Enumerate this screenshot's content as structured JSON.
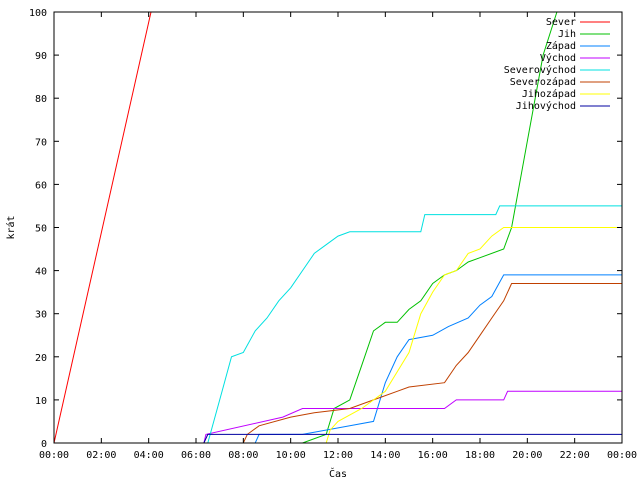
{
  "chart_data": {
    "type": "line",
    "title": "",
    "xlabel": "Čas",
    "ylabel": "krát",
    "xlim": [
      "00:00",
      "24:00"
    ],
    "ylim": [
      0,
      100
    ],
    "x_tick_labels": [
      "00:00",
      "02:00",
      "04:00",
      "06:00",
      "08:00",
      "10:00",
      "12:00",
      "14:00",
      "16:00",
      "18:00",
      "20:00",
      "22:00",
      "00:00"
    ],
    "y_tick_labels": [
      "0",
      "10",
      "20",
      "30",
      "40",
      "50",
      "60",
      "70",
      "80",
      "90",
      "100"
    ],
    "legend_position": "top-right",
    "grid": false,
    "series": [
      {
        "name": "Sever",
        "color": "#ff0000",
        "points": [
          [
            "00:00",
            0
          ],
          [
            "04:06",
            100
          ]
        ]
      },
      {
        "name": "Jih",
        "color": "#00c000",
        "points": [
          [
            "00:00",
            0
          ],
          [
            "10:30",
            0
          ],
          [
            "11:30",
            2
          ],
          [
            "11:50",
            8
          ],
          [
            "12:30",
            10
          ],
          [
            "13:00",
            18
          ],
          [
            "13:30",
            26
          ],
          [
            "14:00",
            28
          ],
          [
            "14:30",
            28
          ],
          [
            "15:00",
            31
          ],
          [
            "15:30",
            33
          ],
          [
            "16:00",
            37
          ],
          [
            "16:30",
            39
          ],
          [
            "17:00",
            40
          ],
          [
            "17:30",
            42
          ],
          [
            "18:00",
            43
          ],
          [
            "19:00",
            45
          ],
          [
            "19:20",
            50
          ],
          [
            "20:00",
            70
          ],
          [
            "20:40",
            90
          ],
          [
            "21:15",
            100
          ]
        ]
      },
      {
        "name": "Západ",
        "color": "#0080ff",
        "points": [
          [
            "00:00",
            0
          ],
          [
            "08:30",
            0
          ],
          [
            "08:40",
            2
          ],
          [
            "10:30",
            2
          ],
          [
            "12:30",
            4
          ],
          [
            "13:30",
            5
          ],
          [
            "14:00",
            14
          ],
          [
            "14:30",
            20
          ],
          [
            "15:00",
            24
          ],
          [
            "16:00",
            25
          ],
          [
            "16:40",
            27
          ],
          [
            "17:30",
            29
          ],
          [
            "18:00",
            32
          ],
          [
            "18:30",
            34
          ],
          [
            "19:00",
            39
          ],
          [
            "24:00",
            39
          ]
        ]
      },
      {
        "name": "Východ",
        "color": "#c000ff",
        "points": [
          [
            "00:00",
            0
          ],
          [
            "06:20",
            0
          ],
          [
            "06:25",
            2
          ],
          [
            "09:40",
            6
          ],
          [
            "10:30",
            8
          ],
          [
            "16:30",
            8
          ],
          [
            "17:00",
            10
          ],
          [
            "19:00",
            10
          ],
          [
            "19:10",
            12
          ],
          [
            "24:00",
            12
          ]
        ]
      },
      {
        "name": "Severovýchod",
        "color": "#00e0e0",
        "points": [
          [
            "00:00",
            0
          ],
          [
            "06:30",
            0
          ],
          [
            "07:00",
            10
          ],
          [
            "07:30",
            20
          ],
          [
            "08:00",
            21
          ],
          [
            "08:30",
            26
          ],
          [
            "09:00",
            29
          ],
          [
            "09:30",
            33
          ],
          [
            "10:00",
            36
          ],
          [
            "10:30",
            40
          ],
          [
            "11:00",
            44
          ],
          [
            "11:30",
            46
          ],
          [
            "12:00",
            48
          ],
          [
            "12:30",
            49
          ],
          [
            "15:30",
            49
          ],
          [
            "15:40",
            53
          ],
          [
            "18:40",
            53
          ],
          [
            "18:50",
            55
          ],
          [
            "24:00",
            55
          ]
        ]
      },
      {
        "name": "Severozápad",
        "color": "#c04000",
        "points": [
          [
            "00:00",
            0
          ],
          [
            "08:00",
            0
          ],
          [
            "08:10",
            2
          ],
          [
            "08:40",
            4
          ],
          [
            "10:00",
            6
          ],
          [
            "11:00",
            7
          ],
          [
            "12:30",
            8
          ],
          [
            "13:30",
            10
          ],
          [
            "14:30",
            12
          ],
          [
            "15:00",
            13
          ],
          [
            "16:30",
            14
          ],
          [
            "17:00",
            18
          ],
          [
            "17:30",
            21
          ],
          [
            "18:00",
            25
          ],
          [
            "18:30",
            29
          ],
          [
            "19:00",
            33
          ],
          [
            "19:20",
            37
          ],
          [
            "24:00",
            37
          ]
        ]
      },
      {
        "name": "Jihozápad",
        "color": "#ffff00",
        "points": [
          [
            "00:00",
            0
          ],
          [
            "11:30",
            0
          ],
          [
            "11:40",
            3
          ],
          [
            "12:00",
            5
          ],
          [
            "13:00",
            8
          ],
          [
            "14:00",
            12
          ],
          [
            "15:00",
            21
          ],
          [
            "15:30",
            30
          ],
          [
            "16:00",
            35
          ],
          [
            "16:30",
            39
          ],
          [
            "17:00",
            40
          ],
          [
            "17:30",
            44
          ],
          [
            "18:00",
            45
          ],
          [
            "18:30",
            48
          ],
          [
            "19:00",
            50
          ],
          [
            "24:00",
            50
          ]
        ]
      },
      {
        "name": "Jihovýchod",
        "color": "#0000a0",
        "points": [
          [
            "00:00",
            0
          ],
          [
            "06:20",
            0
          ],
          [
            "06:30",
            2
          ],
          [
            "08:00",
            2
          ],
          [
            "24:00",
            2
          ]
        ]
      }
    ]
  }
}
